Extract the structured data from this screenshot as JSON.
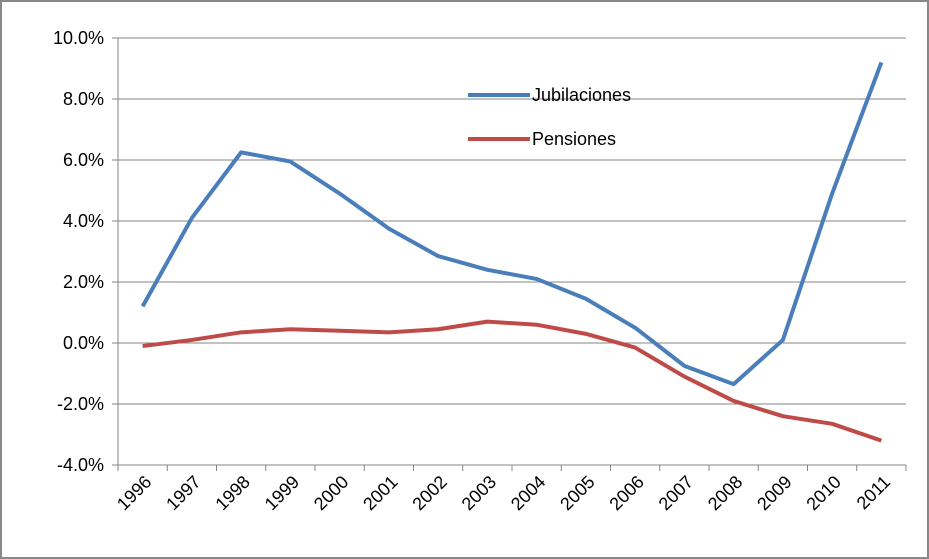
{
  "chart_data": {
    "type": "line",
    "categories": [
      "1996",
      "1997",
      "1998",
      "1999",
      "2000",
      "2001",
      "2002",
      "2003",
      "2004",
      "2005",
      "2006",
      "2007",
      "2008",
      "2009",
      "2010",
      "2011"
    ],
    "series": [
      {
        "name": "Jubilaciones",
        "color": "#4a7ebb",
        "values": [
          1.2,
          4.1,
          6.25,
          5.95,
          4.9,
          3.75,
          2.85,
          2.4,
          2.1,
          1.45,
          0.5,
          -0.75,
          -1.35,
          0.1,
          4.9,
          9.2
        ]
      },
      {
        "name": "Pensiones",
        "color": "#be4b48",
        "values": [
          -0.1,
          0.1,
          0.35,
          0.45,
          0.4,
          0.35,
          0.45,
          0.7,
          0.6,
          0.3,
          -0.15,
          -1.1,
          -1.9,
          -2.4,
          -2.65,
          -3.2
        ]
      }
    ],
    "ylim": [
      -4,
      10
    ],
    "yticks": [
      {
        "value": -4,
        "label": "-4.0%"
      },
      {
        "value": -2,
        "label": "-2.0%"
      },
      {
        "value": 0,
        "label": "0.0%"
      },
      {
        "value": 2,
        "label": "2.0%"
      },
      {
        "value": 4,
        "label": "4.0%"
      },
      {
        "value": 6,
        "label": "6.0%"
      },
      {
        "value": 8,
        "label": "8.0%"
      },
      {
        "value": 10,
        "label": "10.0%"
      }
    ],
    "grid": true
  }
}
